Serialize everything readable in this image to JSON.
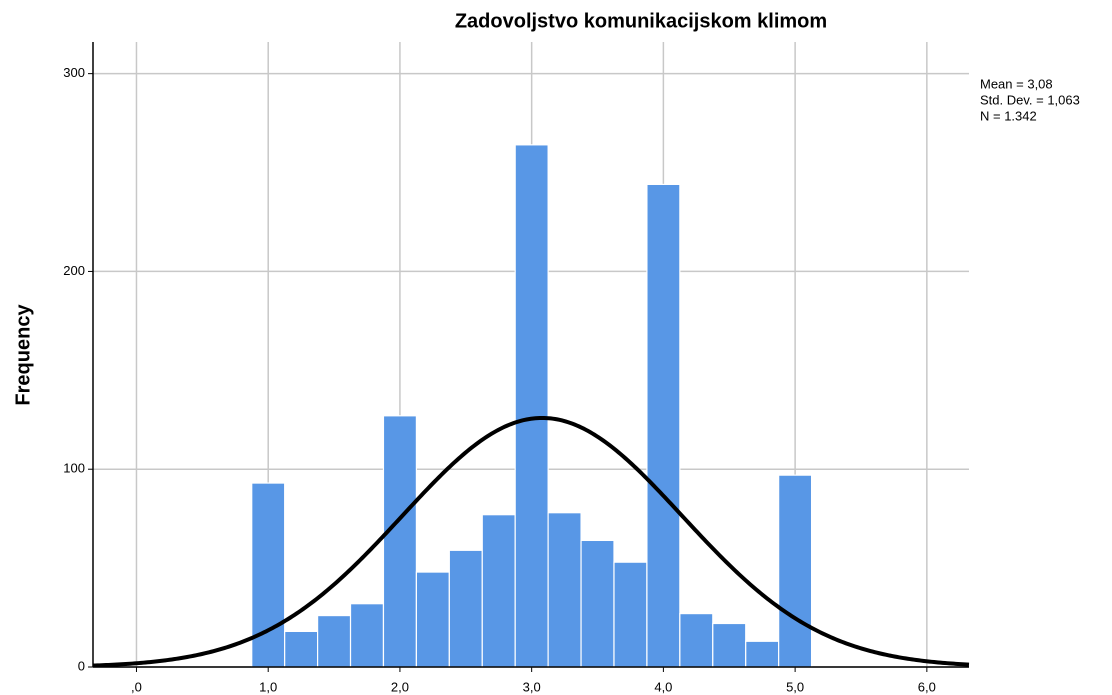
{
  "chart_data": {
    "type": "histogram",
    "title": "Zadovoljstvo komunikacijskom klimom",
    "ylabel": "Frequency",
    "bins": [
      0.875,
      1.125,
      1.375,
      1.625,
      1.875,
      2.125,
      2.375,
      2.625,
      2.875,
      3.125,
      3.375,
      3.625,
      3.875,
      4.125,
      4.375,
      4.625,
      4.875,
      5.125
    ],
    "values": [
      93,
      18,
      26,
      32,
      127,
      48,
      59,
      77,
      264,
      78,
      64,
      53,
      244,
      27,
      22,
      13,
      97
    ],
    "color": "#5897e6",
    "curve_color": "#000000",
    "xlim": [
      -0.33,
      6.32
    ],
    "ylim": [
      0,
      316
    ],
    "xticks": [
      {
        "value": 0,
        "label": ",0"
      },
      {
        "value": 1,
        "label": "1,0"
      },
      {
        "value": 2,
        "label": "2,0"
      },
      {
        "value": 3,
        "label": "3,0"
      },
      {
        "value": 4,
        "label": "4,0"
      },
      {
        "value": 5,
        "label": "5,0"
      },
      {
        "value": 6,
        "label": "6,0"
      }
    ],
    "yticks": [
      0,
      100,
      200,
      300
    ],
    "grid": true,
    "stats": [
      {
        "value": 3.08,
        "label": "Mean = 3,08"
      },
      {
        "value": 1.063,
        "label": "Std. Dev. = 1,063"
      },
      {
        "value": 1342,
        "label": "N = 1.342"
      }
    ]
  }
}
